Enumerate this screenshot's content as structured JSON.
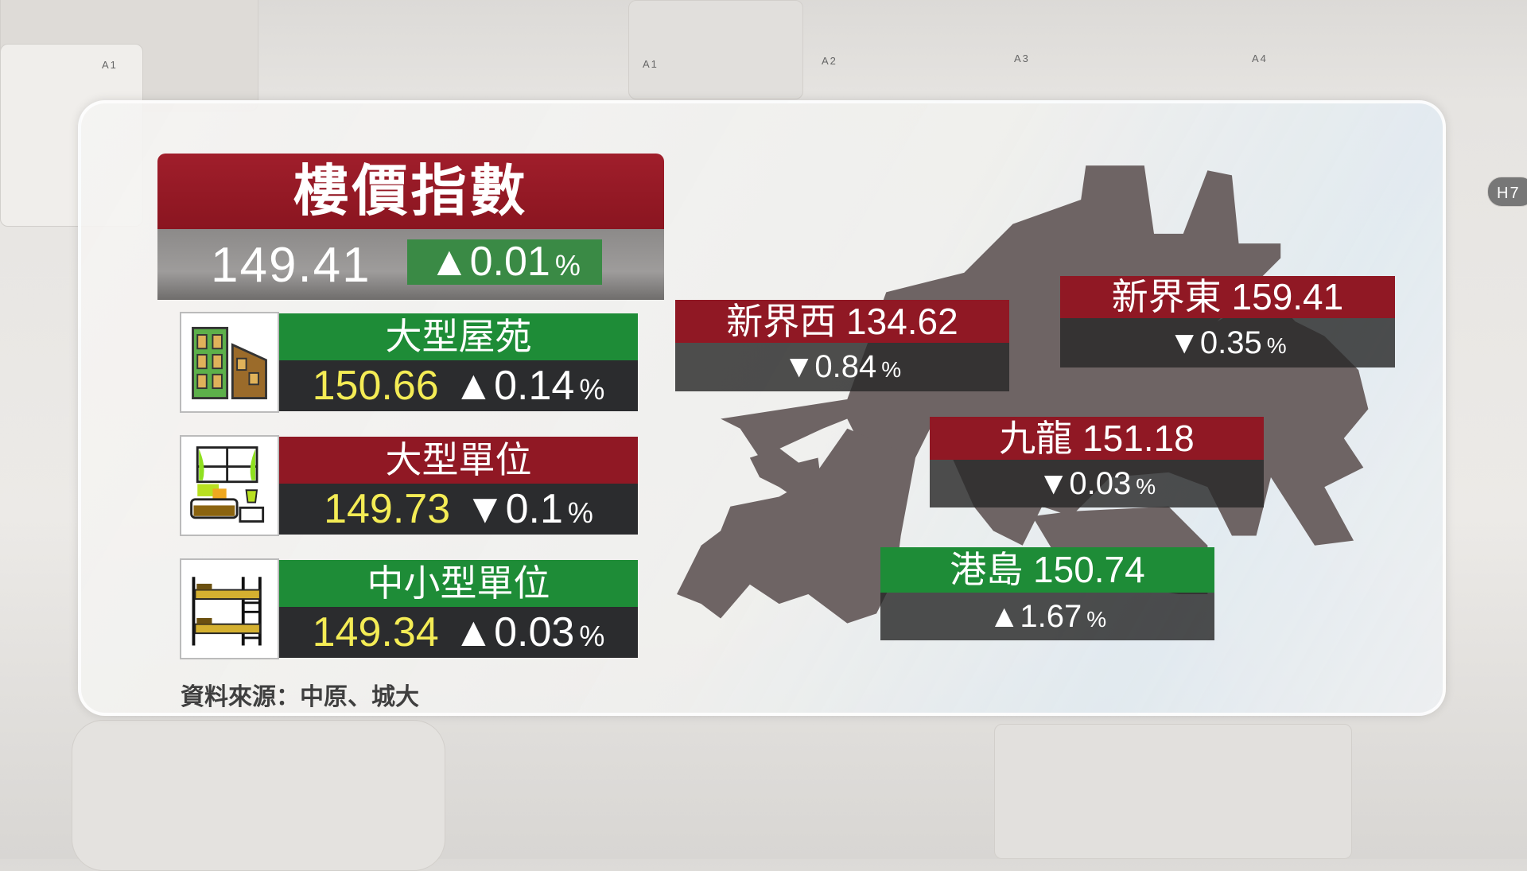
{
  "header": {
    "title": "樓價指數",
    "value": "149.41",
    "change": "▲0.01",
    "pct": "%"
  },
  "categories": [
    {
      "label": "大型屋苑",
      "value": "150.66",
      "change": "▲0.14",
      "pct": "%",
      "color": "#1e8c37",
      "icon": "building-icon"
    },
    {
      "label": "大型單位",
      "value": "149.73",
      "change": "▼0.1",
      "pct": "%",
      "color": "#901824",
      "icon": "bedroom-icon"
    },
    {
      "label": "中小型單位",
      "value": "149.34",
      "change": "▲0.03",
      "pct": "%",
      "color": "#1e8c37",
      "icon": "bunk-bed-icon"
    }
  ],
  "source": "資料來源：中原、城大",
  "regions": [
    {
      "label": "新界西 134.62",
      "change": "▼0.84",
      "pct": "%",
      "color": "#901824"
    },
    {
      "label": "新界東 159.41",
      "change": "▼0.35",
      "pct": "%",
      "color": "#901824"
    },
    {
      "label": "九龍 151.18",
      "change": "▼0.03",
      "pct": "%",
      "color": "#901824"
    },
    {
      "label": "港島 150.74",
      "change": "▲1.67",
      "pct": "%",
      "color": "#1e8c37"
    }
  ],
  "background": {
    "labels": [
      "A1",
      "A1",
      "A2",
      "A3",
      "A4",
      "H7"
    ]
  },
  "colors": {
    "up": "#1e8c37",
    "down": "#901824",
    "value": "#f4ec55"
  }
}
